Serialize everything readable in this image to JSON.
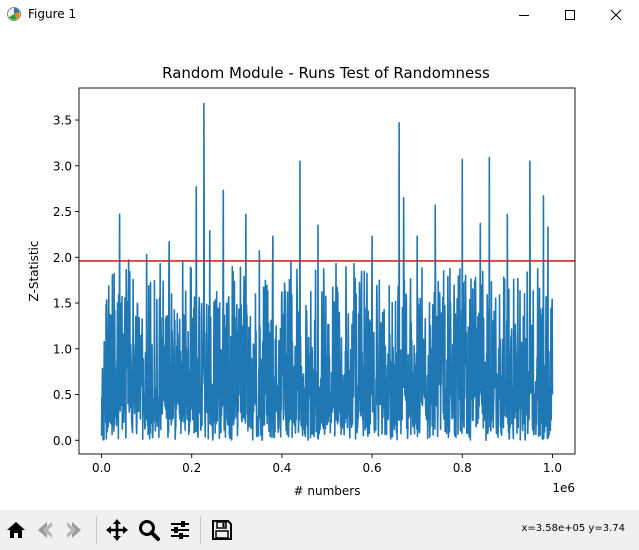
{
  "window": {
    "title": "Figure 1",
    "icons": [
      "figure-app-icon",
      "minimize-icon",
      "maximize-icon",
      "close-icon"
    ]
  },
  "toolbar": {
    "buttons": [
      "home-icon",
      "back-icon",
      "forward-icon",
      "pan-icon",
      "zoom-icon",
      "configure-subplots-icon",
      "save-icon"
    ],
    "coords_text": "x=3.58e+05 y=3.74"
  },
  "colors": {
    "series": "#1f77b4",
    "threshold": "#d62728",
    "toolbar_bg": "#f0f0f0"
  },
  "chart_data": {
    "type": "line",
    "title": "Random Module - Runs Test of Randomness",
    "xlabel": "# numbers",
    "ylabel": "Z-Statistic",
    "x_offset_text": "1e6",
    "xlim": [
      -50000,
      1050000
    ],
    "ylim": [
      -0.15,
      3.85
    ],
    "x_ticks": [
      0,
      200000,
      400000,
      600000,
      800000,
      1000000
    ],
    "x_tick_labels": [
      "0.0",
      "0.2",
      "0.4",
      "0.6",
      "0.8",
      "1.0"
    ],
    "y_ticks": [
      0,
      0.5,
      1,
      1.5,
      2,
      2.5,
      3,
      3.5
    ],
    "y_tick_labels": [
      "0.0",
      "0.5",
      "1.0",
      "1.5",
      "2.0",
      "2.5",
      "3.0",
      "3.5"
    ],
    "grid": false,
    "reference_line": {
      "y": 1.96,
      "color": "#d62728"
    },
    "series": [
      {
        "color": "#1f77b4",
        "peaks": [
          {
            "x": 10000,
            "y": 1.48
          },
          {
            "x": 40000,
            "y": 2.47
          },
          {
            "x": 60000,
            "y": 1.97
          },
          {
            "x": 100000,
            "y": 2.03
          },
          {
            "x": 130000,
            "y": 1.93
          },
          {
            "x": 150000,
            "y": 2.17
          },
          {
            "x": 180000,
            "y": 1.95
          },
          {
            "x": 210000,
            "y": 2.77
          },
          {
            "x": 227000,
            "y": 3.68
          },
          {
            "x": 240000,
            "y": 2.29
          },
          {
            "x": 270000,
            "y": 2.73
          },
          {
            "x": 320000,
            "y": 2.47
          },
          {
            "x": 350000,
            "y": 2.07
          },
          {
            "x": 380000,
            "y": 2.23
          },
          {
            "x": 420000,
            "y": 1.95
          },
          {
            "x": 440000,
            "y": 3.05
          },
          {
            "x": 480000,
            "y": 2.35
          },
          {
            "x": 520000,
            "y": 1.93
          },
          {
            "x": 560000,
            "y": 1.93
          },
          {
            "x": 600000,
            "y": 2.23
          },
          {
            "x": 660000,
            "y": 3.47
          },
          {
            "x": 670000,
            "y": 2.65
          },
          {
            "x": 700000,
            "y": 2.23
          },
          {
            "x": 740000,
            "y": 2.57
          },
          {
            "x": 800000,
            "y": 3.07
          },
          {
            "x": 840000,
            "y": 2.37
          },
          {
            "x": 860000,
            "y": 3.09
          },
          {
            "x": 900000,
            "y": 2.47
          },
          {
            "x": 950000,
            "y": 3.05
          },
          {
            "x": 980000,
            "y": 2.67
          },
          {
            "x": 990000,
            "y": 2.33
          },
          {
            "x": 1000000,
            "y": 0.5
          }
        ]
      }
    ]
  }
}
